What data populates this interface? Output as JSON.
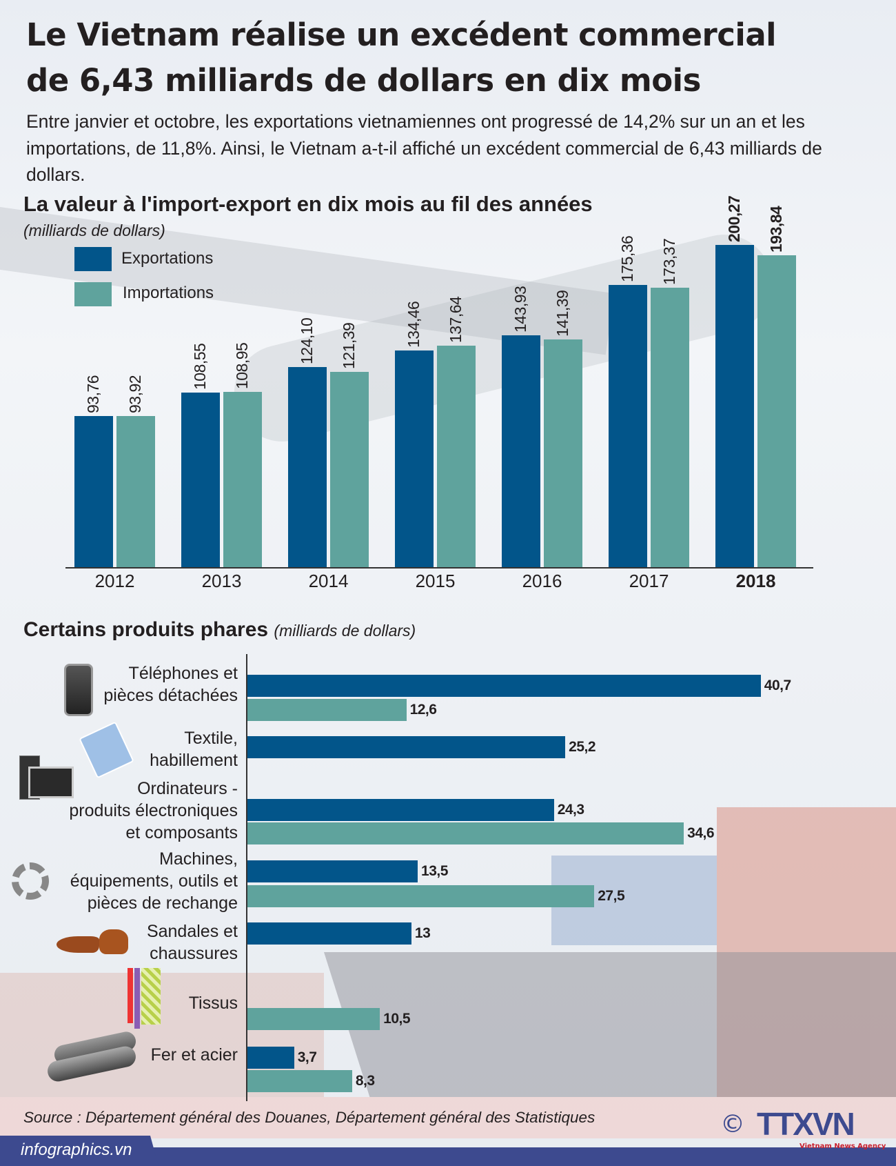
{
  "header": {
    "title_line1": "Le Vietnam réalise un excédent commercial",
    "title_line2": "de 6,43 milliards de dollars en dix mois",
    "intro": "Entre janvier et octobre, les exportations vietnamiennes ont progressé de 14,2% sur un an et les importations, de 11,8%. Ainsi, le Vietnam a-t-il affiché un excédent commercial de 6,43 milliards de dollars."
  },
  "colors": {
    "exports": "#02558a",
    "imports": "#5fa39d"
  },
  "chart_data": [
    {
      "type": "bar",
      "title": "La valeur à l'import-export en dix mois au fil des années",
      "unit": "(milliards de dollars)",
      "legend_position": "top-left",
      "grid": false,
      "categories": [
        "2012",
        "2013",
        "2014",
        "2015",
        "2016",
        "2017",
        "2018"
      ],
      "series": [
        {
          "name": "Exportations",
          "values": [
            93.76,
            108.55,
            124.1,
            134.46,
            143.93,
            175.36,
            200.27
          ],
          "labels": [
            "93,76",
            "108,55",
            "124,10",
            "134,46",
            "143,93",
            "175,36",
            "200,27"
          ]
        },
        {
          "name": "Importations",
          "values": [
            93.92,
            108.95,
            121.39,
            137.64,
            141.39,
            173.37,
            193.84
          ],
          "labels": [
            "93,92",
            "108,95",
            "121,39",
            "137,64",
            "141,39",
            "173,37",
            "193,84"
          ]
        }
      ]
    },
    {
      "type": "bar",
      "orientation": "horizontal",
      "title": "Certains produits phares",
      "unit": "(milliards de dollars)",
      "categories": [
        {
          "label": "Téléphones et\npièces détachées",
          "icon": "phone-icon",
          "exports": 40.7,
          "exports_label": "40,7",
          "imports": 12.6,
          "imports_label": "12,6"
        },
        {
          "label": "Textile,\nhabillement",
          "icon": "shirt-icon",
          "exports": 25.2,
          "exports_label": "25,2",
          "imports": null,
          "imports_label": null
        },
        {
          "label": "Ordinateurs -\nproduits électroniques\net composants",
          "icon": "computer-icon",
          "exports": 24.3,
          "exports_label": "24,3",
          "imports": 34.6,
          "imports_label": "34,6"
        },
        {
          "label": "Machines,\néquipements, outils et\npièces de rechange",
          "icon": "gear-piston-icon",
          "exports": 13.5,
          "exports_label": "13,5",
          "imports": 27.5,
          "imports_label": "27,5"
        },
        {
          "label": "Sandales et\nchaussures",
          "icon": "shoes-icon",
          "exports": 13,
          "exports_label": "13",
          "imports": null,
          "imports_label": null
        },
        {
          "label": "Tissus",
          "icon": "fabric-icon",
          "exports": null,
          "exports_label": null,
          "imports": 10.5,
          "imports_label": "10,5"
        },
        {
          "label": "Fer et acier",
          "icon": "steel-pipes-icon",
          "exports": 3.7,
          "exports_label": "3,7",
          "imports": 8.3,
          "imports_label": "8,3"
        }
      ]
    }
  ],
  "footer": {
    "source": "Source : Département général des Douanes, Département général des Statistiques",
    "site": "infographics.vn",
    "copyright": "©",
    "logo": "TTXVN",
    "logo_sub": "Vietnam News Agency"
  }
}
